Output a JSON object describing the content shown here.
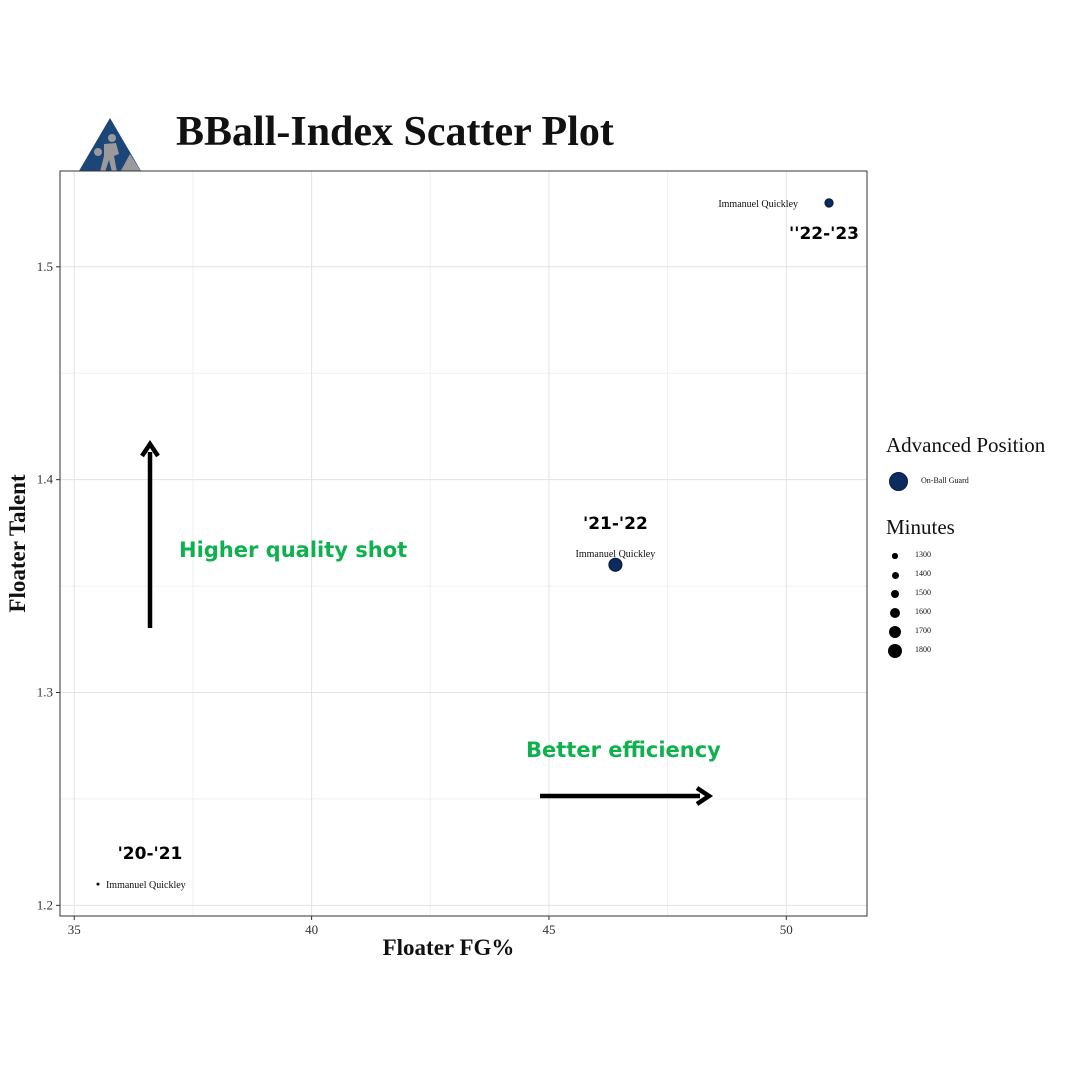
{
  "title": "BBall-Index Scatter Plot",
  "legend": {
    "position_title": "Advanced Position",
    "position_label": "On-Ball    Guard",
    "position_color": "#0d2b5e",
    "minutes_title": "Minutes",
    "minutes_values": [
      "1300",
      "1400",
      "1500",
      "1600",
      "1700",
      "1800"
    ]
  },
  "chart_data": {
    "type": "scatter",
    "title": "BBall-Index Scatter Plot",
    "xlabel": "Floater FG%",
    "ylabel": "Floater Talent",
    "xlim": [
      34.7,
      51.7
    ],
    "ylim": [
      1.195,
      1.545
    ],
    "xticks": [
      35,
      40,
      45,
      50
    ],
    "yticks": [
      1.2,
      1.3,
      1.4,
      1.5
    ],
    "grid": true,
    "legend_position": "right",
    "points": [
      {
        "x": 35.5,
        "y": 1.21,
        "label": "Immanuel Quickley",
        "season": "'20-'21",
        "minutes": 1300
      },
      {
        "x": 46.4,
        "y": 1.36,
        "label": "Immanuel Quickley",
        "season": "'21-'22",
        "minutes": 1700
      },
      {
        "x": 50.9,
        "y": 1.53,
        "label": "Immanuel Quickley",
        "season": "''22-'23",
        "minutes": 1500
      }
    ],
    "annotations": [
      {
        "text": "Higher quality shot",
        "color": "#0fb14f"
      },
      {
        "text": "Better efficiency",
        "color": "#0fb14f"
      }
    ]
  }
}
